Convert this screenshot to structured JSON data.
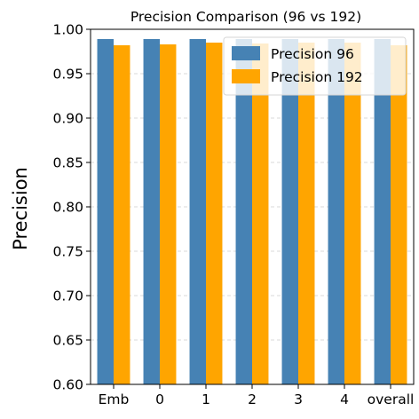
{
  "chart_data": {
    "type": "bar",
    "title": "Precision Comparison (96 vs 192)",
    "xlabel": "",
    "ylabel": "Precision",
    "categories": [
      "Emb",
      "0",
      "1",
      "2",
      "3",
      "4",
      "overall"
    ],
    "series": [
      {
        "name": "Precision 96",
        "color": "#4682b4",
        "values": [
          0.989,
          0.989,
          0.989,
          0.989,
          0.989,
          0.989,
          0.989
        ]
      },
      {
        "name": "Precision 192",
        "color": "#ffa500",
        "values": [
          0.982,
          0.983,
          0.985,
          0.984,
          0.985,
          0.985,
          0.982
        ]
      }
    ],
    "ylim": [
      0.6,
      1.0
    ],
    "yticks": [
      "0.60",
      "0.65",
      "0.70",
      "0.75",
      "0.80",
      "0.85",
      "0.90",
      "0.95",
      "1.00"
    ],
    "grid": "y-dashed",
    "legend": "top-right"
  }
}
